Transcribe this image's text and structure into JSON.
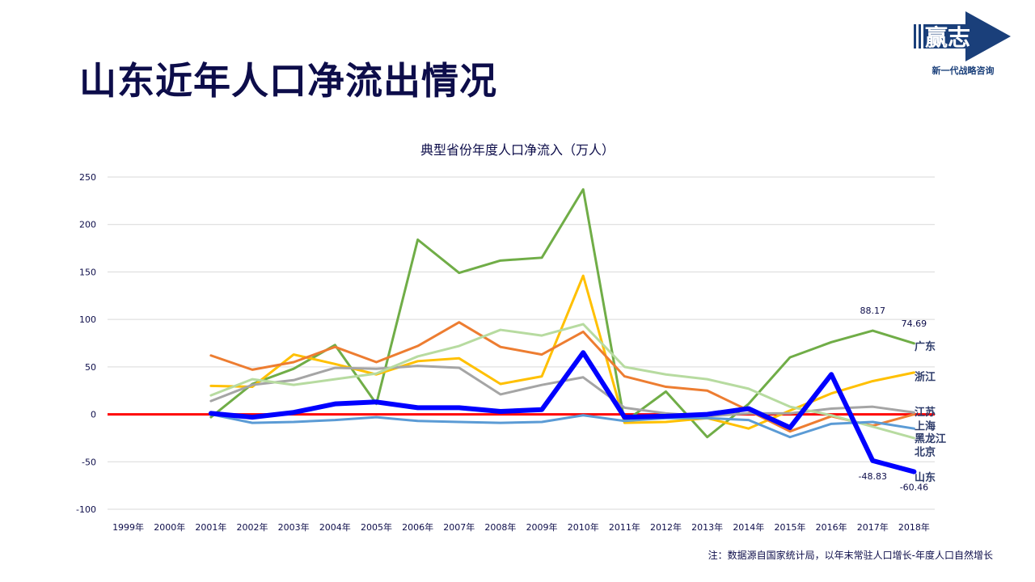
{
  "page_title": "山东近年人口净流出情况",
  "logo": {
    "text": "赢志",
    "tagline": "新一代战略咨询"
  },
  "footnote": "注：数据源自国家统计局，以年末常驻人口增长-年度人口自然增长",
  "chart_data": {
    "type": "line",
    "title": "典型省份年度人口净流入（万人）",
    "xlabel": "",
    "ylabel": "",
    "ylim": [
      -100,
      250
    ],
    "yticks": [
      -100,
      -50,
      0,
      50,
      100,
      150,
      200,
      250
    ],
    "grid": true,
    "categories": [
      "1999年",
      "2000年",
      "2001年",
      "2002年",
      "2003年",
      "2004年",
      "2005年",
      "2006年",
      "2007年",
      "2008年",
      "2009年",
      "2010年",
      "2011年",
      "2012年",
      "2013年",
      "2014年",
      "2015年",
      "2016年",
      "2017年",
      "2018年"
    ],
    "series": [
      {
        "name": "广东",
        "color": "#70ad47",
        "width": 3,
        "values": [
          null,
          null,
          -3,
          32,
          48,
          73,
          11,
          184,
          149,
          162,
          165,
          237,
          -8,
          24,
          -24,
          11,
          60,
          76,
          88.17,
          74.69
        ]
      },
      {
        "name": "浙江",
        "color": "#ffc000",
        "width": 3,
        "values": [
          null,
          null,
          30,
          29,
          63,
          53,
          42,
          56,
          59,
          32,
          40,
          146,
          -9,
          -8,
          -4,
          -15,
          4,
          22,
          35,
          44
        ]
      },
      {
        "name": "北京",
        "color": "#ed7d31",
        "width": 3,
        "values": [
          null,
          null,
          62,
          47,
          55,
          71,
          55,
          72,
          97,
          71,
          63,
          87,
          40,
          29,
          25,
          4,
          -18,
          -2,
          -12,
          0
        ]
      },
      {
        "name": "江苏",
        "color": "#a5a5a5",
        "width": 3,
        "values": [
          null,
          null,
          14,
          31,
          36,
          49,
          48,
          51,
          49,
          21,
          31,
          39,
          7,
          1,
          -2,
          1,
          1,
          6,
          8,
          2
        ]
      },
      {
        "name": "黑龙江",
        "color": "#b7dba0",
        "width": 3,
        "values": [
          null,
          null,
          20,
          37,
          31,
          37,
          43,
          61,
          72,
          89,
          83,
          95,
          50,
          42,
          37,
          27,
          8,
          -1,
          -13,
          -25
        ]
      },
      {
        "name": "上海",
        "color": "#5b9bd5",
        "width": 3,
        "values": [
          null,
          null,
          0,
          -9,
          -8,
          -6,
          -3,
          -7,
          -8,
          -9,
          -8,
          -1,
          -7,
          -4,
          -4,
          -6,
          -24,
          -10,
          -8,
          -15
        ]
      },
      {
        "name": "山东",
        "color": "#0000ff",
        "width": 6,
        "values": [
          null,
          null,
          1,
          -3,
          2,
          11,
          13,
          7,
          7,
          3,
          5,
          65,
          -3,
          -2,
          0,
          6,
          -14,
          42,
          -48.83,
          -60.46
        ]
      }
    ],
    "zero_line_color": "#ff0000",
    "data_labels": [
      {
        "series": "广东",
        "category": "2017年",
        "text": "88.17",
        "pos": "above"
      },
      {
        "series": "广东",
        "category": "2018年",
        "text": "74.69",
        "pos": "above"
      },
      {
        "series": "山东",
        "category": "2017年",
        "text": "-48.83",
        "pos": "below"
      },
      {
        "series": "山东",
        "category": "2018年",
        "text": "-60.46",
        "pos": "below"
      }
    ],
    "end_labels": [
      {
        "text": "广东",
        "value": 72
      },
      {
        "text": "浙江",
        "value": 40
      },
      {
        "text": "江苏",
        "value": 3
      },
      {
        "text": "上海",
        "value": -12
      },
      {
        "text": "黑龙江",
        "value": -25
      },
      {
        "text": "北京",
        "value": -39
      },
      {
        "text": "山东",
        "value": -66
      }
    ]
  }
}
